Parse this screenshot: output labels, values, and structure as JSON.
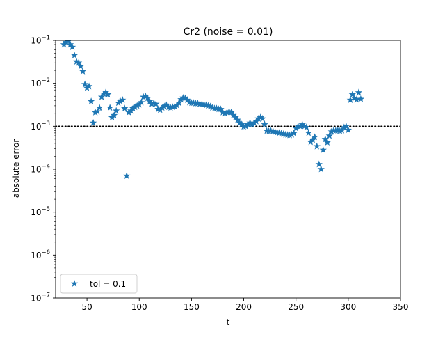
{
  "chart_data": {
    "type": "scatter",
    "title": "Cr2 (noise = 0.01)",
    "xlabel": "t",
    "ylabel": "absolute error",
    "xlim": [
      20,
      350
    ],
    "ylim": [
      1e-07,
      0.1
    ],
    "yscale": "log",
    "x_ticks": [
      50,
      100,
      150,
      200,
      250,
      300,
      350
    ],
    "x_tick_labels": [
      "50",
      "100",
      "150",
      "200",
      "250",
      "300",
      "350"
    ],
    "y_ticks": [
      1e-07,
      1e-06,
      1e-05,
      0.0001,
      0.001,
      0.01,
      0.1
    ],
    "y_tick_labels": [
      {
        "base": "10",
        "exp": "−7"
      },
      {
        "base": "10",
        "exp": "−6"
      },
      {
        "base": "10",
        "exp": "−5"
      },
      {
        "base": "10",
        "exp": "−4"
      },
      {
        "base": "10",
        "exp": "−3"
      },
      {
        "base": "10",
        "exp": "−2"
      },
      {
        "base": "10",
        "exp": "−1"
      }
    ],
    "grid": false,
    "legend_position": "lower-left",
    "reference_line": {
      "y": 0.001,
      "style": "dotted",
      "color": "#000000"
    },
    "series": [
      {
        "name": "tol = 0.1",
        "marker": "star",
        "color": "#1f77b4",
        "points": [
          [
            28,
            0.08
          ],
          [
            30,
            0.09
          ],
          [
            32,
            0.095
          ],
          [
            34,
            0.08
          ],
          [
            36,
            0.07
          ],
          [
            38,
            0.045
          ],
          [
            40,
            0.032
          ],
          [
            42,
            0.03
          ],
          [
            44,
            0.025
          ],
          [
            46,
            0.019
          ],
          [
            48,
            0.0095
          ],
          [
            50,
            0.0078
          ],
          [
            52,
            0.0085
          ],
          [
            54,
            0.0038
          ],
          [
            56,
            0.0012
          ],
          [
            58,
            0.0021
          ],
          [
            60,
            0.0022
          ],
          [
            62,
            0.0027
          ],
          [
            64,
            0.0048
          ],
          [
            66,
            0.0057
          ],
          [
            68,
            0.0062
          ],
          [
            70,
            0.0055
          ],
          [
            72,
            0.0027
          ],
          [
            74,
            0.0016
          ],
          [
            76,
            0.0018
          ],
          [
            78,
            0.0023
          ],
          [
            80,
            0.0035
          ],
          [
            82,
            0.0038
          ],
          [
            84,
            0.0041
          ],
          [
            86,
            0.0026
          ],
          [
            88,
            7e-05
          ],
          [
            90,
            0.0021
          ],
          [
            92,
            0.0023
          ],
          [
            94,
            0.0026
          ],
          [
            96,
            0.0028
          ],
          [
            98,
            0.003
          ],
          [
            100,
            0.0032
          ],
          [
            102,
            0.0036
          ],
          [
            104,
            0.0048
          ],
          [
            106,
            0.005
          ],
          [
            108,
            0.0045
          ],
          [
            110,
            0.0038
          ],
          [
            112,
            0.0033
          ],
          [
            114,
            0.0035
          ],
          [
            116,
            0.0033
          ],
          [
            118,
            0.0025
          ],
          [
            120,
            0.0024
          ],
          [
            122,
            0.0027
          ],
          [
            124,
            0.0029
          ],
          [
            126,
            0.0031
          ],
          [
            128,
            0.0028
          ],
          [
            130,
            0.0027
          ],
          [
            132,
            0.0028
          ],
          [
            134,
            0.0029
          ],
          [
            136,
            0.0031
          ],
          [
            138,
            0.0035
          ],
          [
            140,
            0.0042
          ],
          [
            142,
            0.0046
          ],
          [
            144,
            0.0045
          ],
          [
            146,
            0.0041
          ],
          [
            148,
            0.0036
          ],
          [
            150,
            0.0035
          ],
          [
            152,
            0.0035
          ],
          [
            154,
            0.0034
          ],
          [
            156,
            0.0034
          ],
          [
            158,
            0.0033
          ],
          [
            160,
            0.0033
          ],
          [
            162,
            0.0032
          ],
          [
            164,
            0.0031
          ],
          [
            166,
            0.003
          ],
          [
            168,
            0.0029
          ],
          [
            170,
            0.0027
          ],
          [
            172,
            0.0026
          ],
          [
            174,
            0.0026
          ],
          [
            176,
            0.0025
          ],
          [
            178,
            0.0025
          ],
          [
            180,
            0.0021
          ],
          [
            182,
            0.002
          ],
          [
            184,
            0.0021
          ],
          [
            186,
            0.0022
          ],
          [
            188,
            0.0021
          ],
          [
            190,
            0.0018
          ],
          [
            192,
            0.0016
          ],
          [
            194,
            0.0014
          ],
          [
            196,
            0.0012
          ],
          [
            198,
            0.0011
          ],
          [
            200,
            0.00098
          ],
          [
            202,
            0.001
          ],
          [
            204,
            0.0011
          ],
          [
            206,
            0.0012
          ],
          [
            208,
            0.0011
          ],
          [
            210,
            0.0012
          ],
          [
            212,
            0.0013
          ],
          [
            214,
            0.0015
          ],
          [
            216,
            0.0016
          ],
          [
            218,
            0.0015
          ],
          [
            220,
            0.0011
          ],
          [
            222,
            0.00078
          ],
          [
            224,
            0.00077
          ],
          [
            226,
            0.00078
          ],
          [
            228,
            0.00077
          ],
          [
            230,
            0.00074
          ],
          [
            232,
            0.00072
          ],
          [
            234,
            0.0007
          ],
          [
            236,
            0.00068
          ],
          [
            238,
            0.00066
          ],
          [
            240,
            0.00064
          ],
          [
            242,
            0.00063
          ],
          [
            244,
            0.00062
          ],
          [
            246,
            0.00064
          ],
          [
            248,
            0.00069
          ],
          [
            250,
            0.0009
          ],
          [
            252,
            0.001
          ],
          [
            254,
            0.001
          ],
          [
            256,
            0.0011
          ],
          [
            258,
            0.001
          ],
          [
            260,
            0.00095
          ],
          [
            262,
            0.0007
          ],
          [
            264,
            0.00043
          ],
          [
            266,
            0.00048
          ],
          [
            268,
            0.00056
          ],
          [
            270,
            0.00034
          ],
          [
            272,
            0.00013
          ],
          [
            274,
            0.0001
          ],
          [
            276,
            0.00028
          ],
          [
            278,
            0.0005
          ],
          [
            280,
            0.00042
          ],
          [
            282,
            0.0006
          ],
          [
            284,
            0.00075
          ],
          [
            286,
            0.0008
          ],
          [
            288,
            0.00079
          ],
          [
            290,
            0.0008
          ],
          [
            292,
            0.00078
          ],
          [
            294,
            0.0008
          ],
          [
            296,
            0.00094
          ],
          [
            298,
            0.001
          ],
          [
            300,
            0.00082
          ],
          [
            302,
            0.0041
          ],
          [
            304,
            0.0055
          ],
          [
            306,
            0.0045
          ],
          [
            308,
            0.0042
          ],
          [
            310,
            0.0061
          ],
          [
            312,
            0.0043
          ]
        ]
      }
    ]
  }
}
